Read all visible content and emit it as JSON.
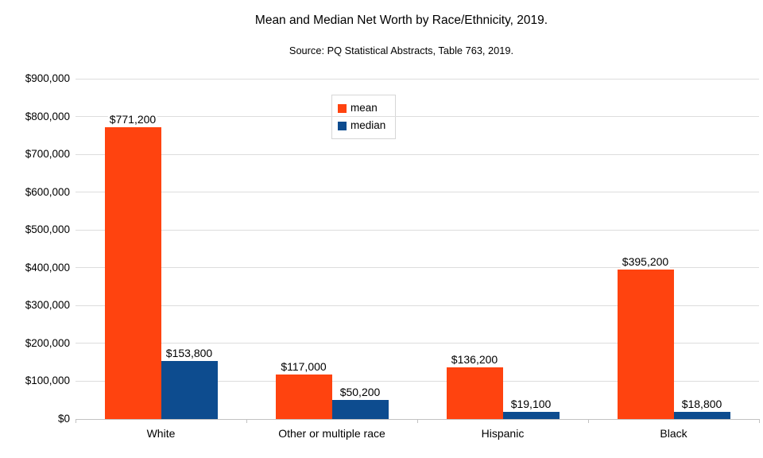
{
  "chart_data": {
    "type": "bar",
    "title": "Mean and Median Net Worth by Race/Ethnicity, 2019.",
    "subtitle": "Source: PQ Statistical Abstracts, Table 763, 2019.",
    "categories": [
      "White",
      "Other or multiple race",
      "Hispanic",
      "Black"
    ],
    "series": [
      {
        "name": "mean",
        "color": "#ff430f",
        "values": [
          771200,
          117000,
          136200,
          395200
        ],
        "labels": [
          "$771,200",
          "$117,000",
          "$136,200",
          "$395,200"
        ]
      },
      {
        "name": "median",
        "color": "#0d4c8f",
        "values": [
          153800,
          50200,
          19100,
          18800
        ],
        "labels": [
          "$153,800",
          "$50,200",
          "$19,100",
          "$18,800"
        ]
      }
    ],
    "y_axis": {
      "min": 0,
      "max": 900000,
      "step": 100000,
      "tick_labels": [
        "$0",
        "$100,000",
        "$200,000",
        "$300,000",
        "$400,000",
        "$500,000",
        "$600,000",
        "$700,000",
        "$800,000",
        "$900,000"
      ]
    },
    "legend": {
      "position": "top-center",
      "entries": [
        "mean",
        "median"
      ]
    },
    "grid": "horizontal",
    "colors": {
      "grid": "#dddddd",
      "axis": "#c2c2c2",
      "text": "#000000",
      "background": "#ffffff"
    }
  }
}
